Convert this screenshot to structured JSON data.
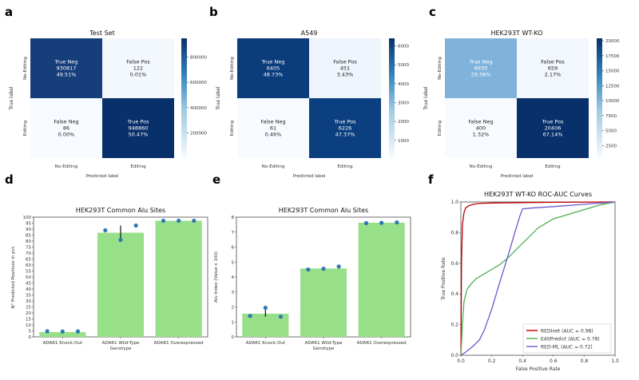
{
  "confusion_panels": [
    {
      "letter": "a",
      "title": "Test Set",
      "cells": [
        {
          "name": "True Neg",
          "count": "930817",
          "pct": "49.51%"
        },
        {
          "name": "False Pos",
          "count": "122",
          "pct": "0.01%"
        },
        {
          "name": "False Neg",
          "count": "86",
          "pct": "0.00%"
        },
        {
          "name": "True Pos",
          "count": "948860",
          "pct": "50.47%"
        }
      ],
      "colorbar_ticks": [
        "800000",
        "600000",
        "400000",
        "200000"
      ]
    },
    {
      "letter": "b",
      "title": "A549",
      "cells": [
        {
          "name": "True Neg",
          "count": "6405",
          "pct": "48.73%"
        },
        {
          "name": "False Pos",
          "count": "451",
          "pct": "3.43%"
        },
        {
          "name": "False Neg",
          "count": "61",
          "pct": "0.46%"
        },
        {
          "name": "True Pos",
          "count": "6226",
          "pct": "47.37%"
        }
      ],
      "colorbar_ticks": [
        "6000",
        "5000",
        "4000",
        "3000",
        "2000",
        "1000"
      ]
    },
    {
      "letter": "c",
      "title": "HEK293T WT-KO",
      "cells": [
        {
          "name": "True Neg",
          "count": "8930",
          "pct": "29.38%"
        },
        {
          "name": "False Pos",
          "count": "659",
          "pct": "2.17%"
        },
        {
          "name": "False Neg",
          "count": "400",
          "pct": "1.32%"
        },
        {
          "name": "True Pos",
          "count": "20406",
          "pct": "67.14%"
        }
      ],
      "colorbar_ticks": [
        "20000",
        "17500",
        "15000",
        "12500",
        "10000",
        "7500",
        "5000",
        "2500"
      ]
    }
  ],
  "confusion_axes": {
    "ylabel": "True label",
    "xlabel": "Predicted label",
    "classes": [
      "No-Editing",
      "Editing"
    ]
  },
  "chart_data": [
    {
      "type": "bar",
      "letter": "d",
      "title": "HEK293T Common Alu Sites",
      "categories": [
        "ADAR1 Knock-Out",
        "ADAR1 Wild-Type",
        "ADAR1 Overexpressed"
      ],
      "values": [
        4,
        87,
        97
      ],
      "replicates": [
        [
          4.7,
          4.5,
          4.6
        ],
        [
          89,
          81,
          93
        ],
        [
          97,
          97,
          97
        ]
      ],
      "ylim": [
        0,
        100
      ],
      "yticks": [
        "0",
        "5",
        "10",
        "15",
        "20",
        "25",
        "30",
        "35",
        "40",
        "45",
        "50",
        "55",
        "60",
        "65",
        "70",
        "75",
        "80",
        "85",
        "90",
        "95",
        "100"
      ],
      "xlabel": "Genotype",
      "ylabel": "N° Predicted Positives in pct."
    },
    {
      "type": "bar",
      "letter": "e",
      "title": "HEK293T Common Alu Sites",
      "categories": [
        "ADAR1 Knock-Out",
        "ADAR1 Wild-Type",
        "ADAR1 Overexpressed"
      ],
      "values": [
        1.55,
        4.57,
        7.63
      ],
      "replicates": [
        [
          1.4,
          1.95,
          1.35
        ],
        [
          4.5,
          4.55,
          4.7
        ],
        [
          7.6,
          7.62,
          7.65
        ]
      ],
      "ylim": [
        0,
        8
      ],
      "yticks": [
        "0",
        "1",
        "2",
        "3",
        "4",
        "5",
        "6",
        "7",
        "8"
      ],
      "xlabel": "Genotype",
      "ylabel": "Alu Index (Value x 100)"
    },
    {
      "type": "line",
      "letter": "f",
      "title": "HEK293T WT-KO ROC-AUC Curves",
      "xlabel": "False Positive Rate",
      "ylabel": "True Positive Rate",
      "xlim": [
        0,
        1
      ],
      "ylim": [
        0,
        1
      ],
      "ticks": [
        "0.0",
        "0.2",
        "0.4",
        "0.6",
        "0.8",
        "1.0"
      ],
      "series": [
        {
          "name": "REDInet (AUC = 0.98)",
          "color": "#c00000",
          "x": [
            0,
            0.004,
            0.01,
            0.02,
            0.03,
            0.05,
            0.08,
            0.12,
            0.2,
            0.4,
            0.6,
            0.8,
            1.0
          ],
          "y": [
            0,
            0.6,
            0.85,
            0.93,
            0.96,
            0.975,
            0.985,
            0.99,
            0.993,
            0.996,
            0.998,
            0.999,
            1.0
          ]
        },
        {
          "name": "EditPredict (AUC = 0.78)",
          "color": "#4caf50",
          "x": [
            0,
            0.01,
            0.02,
            0.04,
            0.07,
            0.1,
            0.15,
            0.2,
            0.25,
            0.3,
            0.35,
            0.4,
            0.45,
            0.5,
            0.55,
            0.6,
            0.7,
            0.8,
            0.9,
            1.0
          ],
          "y": [
            0,
            0.2,
            0.35,
            0.43,
            0.47,
            0.5,
            0.53,
            0.56,
            0.59,
            0.63,
            0.68,
            0.73,
            0.78,
            0.83,
            0.86,
            0.89,
            0.92,
            0.95,
            0.98,
            1.0
          ]
        },
        {
          "name": "RED-ML (AUC = 0.72)",
          "color": "#6a5acd",
          "x": [
            0,
            0.03,
            0.08,
            0.12,
            0.15,
            0.2,
            0.25,
            0.3,
            0.35,
            0.38,
            0.4,
            0.45,
            0.6,
            0.8,
            1.0
          ],
          "y": [
            0,
            0.02,
            0.06,
            0.1,
            0.16,
            0.3,
            0.47,
            0.63,
            0.8,
            0.9,
            0.955,
            0.96,
            0.97,
            0.985,
            1.0
          ]
        }
      ]
    }
  ]
}
